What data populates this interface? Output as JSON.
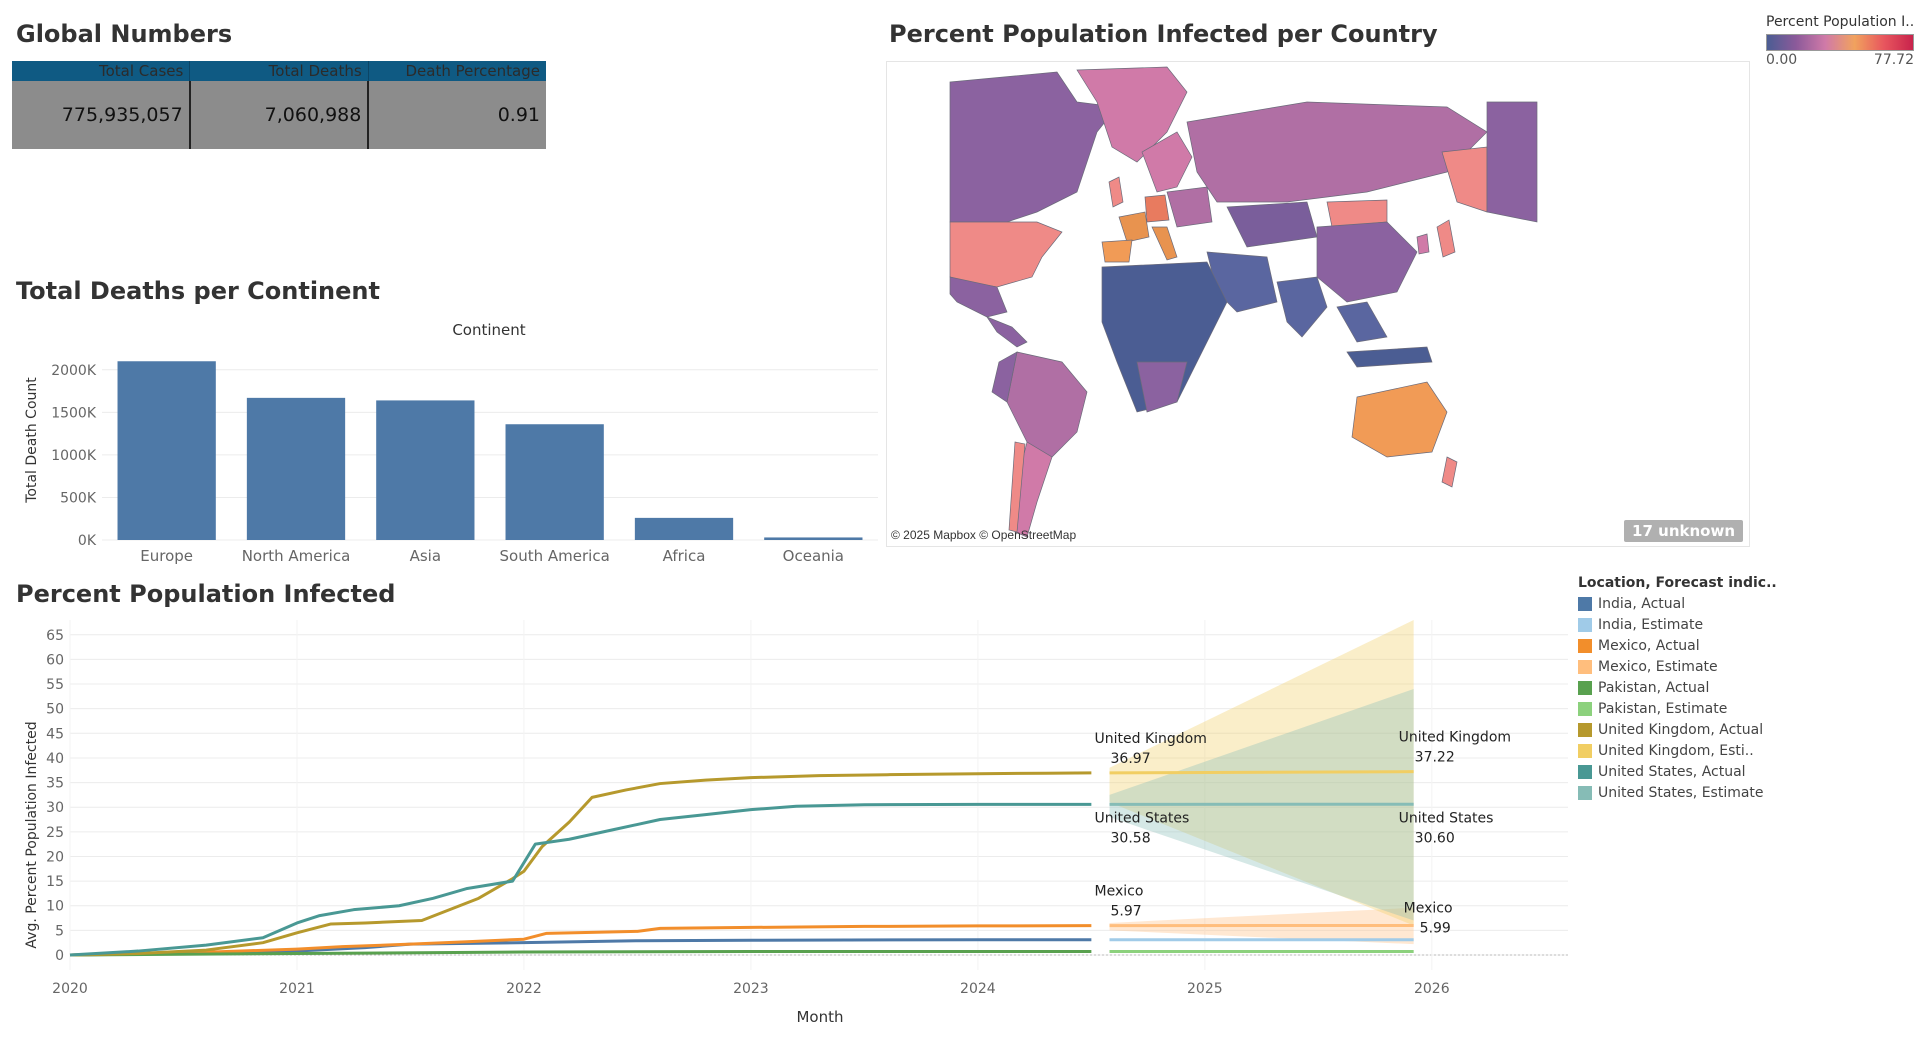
{
  "global": {
    "title": "Global Numbers",
    "headers": [
      "Total Cases",
      "Total Deaths",
      "Death Percentage"
    ],
    "values": [
      "775,935,057",
      "7,060,988",
      "0.91"
    ],
    "colors": {
      "header": "#0f5a83",
      "cells": "#8c8c8c"
    }
  },
  "deaths": {
    "title": "Total Deaths per Continent",
    "chart_data": {
      "type": "bar",
      "title": "Total Deaths per Continent",
      "xlabel": "Continent",
      "ylabel": "Total Death Count",
      "categories": [
        "Europe",
        "North America",
        "Asia",
        "South America",
        "Africa",
        "Oceania"
      ],
      "values": [
        2100000,
        1670000,
        1640000,
        1360000,
        260000,
        30000
      ],
      "yticks": [
        0,
        500000,
        1000000,
        1500000,
        2000000
      ],
      "ytick_labels": [
        "0K",
        "500K",
        "1000K",
        "1500K",
        "2000K"
      ],
      "ylim": [
        0,
        2150000
      ],
      "color": "#4e79a7",
      "grid": true
    }
  },
  "map": {
    "title": "Percent Population Infected per Country",
    "attribution": "© 2025 Mapbox © OpenStreetMap",
    "unknown_badge": "17 unknown",
    "legend": {
      "title": "Percent Population I..",
      "min": "0.00",
      "max": "77.72",
      "colors": [
        "#4b5d93",
        "#8c5a9a",
        "#d07aa8",
        "#f1a25e",
        "#e8565e",
        "#c8234c"
      ]
    }
  },
  "infected": {
    "title": "Percent Population Infected",
    "legend_title": "Location, Forecast indic..",
    "chart_data": {
      "type": "line",
      "title": "Percent Population Infected",
      "xlabel": "Month",
      "ylabel": "Avg. Percent Population Infected",
      "xticks": [
        "2020",
        "2021",
        "2022",
        "2023",
        "2024",
        "2025",
        "2026"
      ],
      "xlim": [
        2020,
        2026.6
      ],
      "ylim": [
        0,
        68
      ],
      "yticks": [
        0,
        5,
        10,
        15,
        20,
        25,
        30,
        35,
        40,
        45,
        50,
        55,
        60,
        65
      ],
      "grid": true,
      "series": [
        {
          "name": "India, Actual",
          "color": "#4e79a7",
          "x": [
            2020.0,
            2020.5,
            2021.0,
            2021.3,
            2021.5,
            2022.0,
            2022.5,
            2023.0,
            2024.0,
            2024.5
          ],
          "y": [
            0,
            0.3,
            0.8,
            1.5,
            2.2,
            2.5,
            2.9,
            3.0,
            3.1,
            3.1
          ]
        },
        {
          "name": "India, Estimate",
          "color": "#a0cbe8",
          "x": [
            2024.58,
            2025.92
          ],
          "y": [
            3.1,
            3.1
          ]
        },
        {
          "name": "Mexico, Actual",
          "color": "#f28e2b",
          "x": [
            2020.0,
            2020.5,
            2021.0,
            2021.2,
            2021.5,
            2021.75,
            2022.0,
            2022.1,
            2022.5,
            2022.6,
            2023.0,
            2023.5,
            2024.0,
            2024.5
          ],
          "y": [
            0,
            0.4,
            1.2,
            1.7,
            2.2,
            2.7,
            3.2,
            4.4,
            4.8,
            5.4,
            5.6,
            5.8,
            5.9,
            5.97
          ]
        },
        {
          "name": "Mexico, Estimate",
          "color": "#ffbe7d",
          "x": [
            2024.58,
            2025.92
          ],
          "y": [
            5.97,
            5.99
          ],
          "band_x": [
            2024.58,
            2025.92
          ],
          "band_lo": [
            5.0,
            2.2
          ],
          "band_hi": [
            6.5,
            9.6
          ]
        },
        {
          "name": "Pakistan, Actual",
          "color": "#59a14f",
          "x": [
            2020.0,
            2021.0,
            2022.0,
            2023.0,
            2024.5
          ],
          "y": [
            0,
            0.3,
            0.6,
            0.7,
            0.7
          ]
        },
        {
          "name": "Pakistan, Estimate",
          "color": "#8cd17d",
          "x": [
            2024.58,
            2025.92
          ],
          "y": [
            0.7,
            0.7
          ]
        },
        {
          "name": "United Kingdom, Actual",
          "color": "#b6992d",
          "x": [
            2020.0,
            2020.3,
            2020.6,
            2020.85,
            2021.0,
            2021.15,
            2021.3,
            2021.55,
            2021.8,
            2021.95,
            2022.0,
            2022.08,
            2022.2,
            2022.3,
            2022.45,
            2022.6,
            2022.8,
            2023.0,
            2023.3,
            2023.6,
            2024.0,
            2024.3,
            2024.5
          ],
          "y": [
            0,
            0.3,
            1.0,
            2.5,
            4.5,
            6.3,
            6.5,
            7.0,
            11.5,
            15.5,
            17.0,
            22.0,
            27.0,
            32.0,
            33.5,
            34.8,
            35.5,
            36.0,
            36.4,
            36.6,
            36.8,
            36.9,
            36.97
          ]
        },
        {
          "name": "United Kingdom, Estimate",
          "color": "#f1ce63",
          "x": [
            2024.58,
            2025.92
          ],
          "y": [
            36.97,
            37.22
          ],
          "band_x": [
            2024.58,
            2025.92
          ],
          "band_lo": [
            31.0,
            6.0
          ],
          "band_hi": [
            38.0,
            68.0
          ]
        },
        {
          "name": "United States, Actual",
          "color": "#499894",
          "x": [
            2020.0,
            2020.3,
            2020.6,
            2020.85,
            2021.0,
            2021.1,
            2021.25,
            2021.45,
            2021.6,
            2021.75,
            2021.95,
            2022.05,
            2022.2,
            2022.4,
            2022.6,
            2022.8,
            2023.0,
            2023.2,
            2023.5,
            2024.0,
            2024.5
          ],
          "y": [
            0,
            0.8,
            2.0,
            3.5,
            6.5,
            8.0,
            9.2,
            10.0,
            11.5,
            13.5,
            15.0,
            22.5,
            23.5,
            25.5,
            27.5,
            28.5,
            29.5,
            30.2,
            30.5,
            30.58,
            30.58
          ]
        },
        {
          "name": "United States, Estimate",
          "color": "#86bcb6",
          "x": [
            2024.58,
            2025.92
          ],
          "y": [
            30.58,
            30.6
          ],
          "band_x": [
            2024.58,
            2025.92
          ],
          "band_lo": [
            28.0,
            7.0
          ],
          "band_hi": [
            32.5,
            54.0
          ]
        }
      ],
      "annotations": [
        {
          "label": "United Kingdom",
          "value": "36.97"
        },
        {
          "label": "United Kingdom",
          "value": "37.22"
        },
        {
          "label": "United States",
          "value": "30.58"
        },
        {
          "label": "United States",
          "value": "30.60"
        },
        {
          "label": "Mexico",
          "value": "5.97"
        },
        {
          "label": "Mexico",
          "value": "5.99"
        }
      ]
    }
  }
}
